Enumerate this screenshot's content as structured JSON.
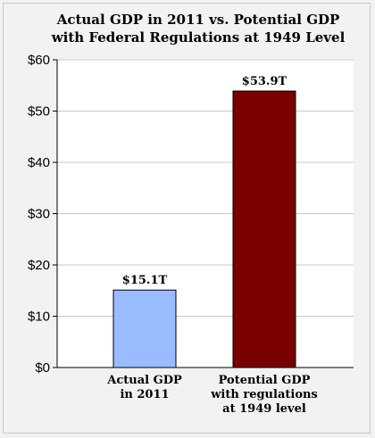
{
  "chart_data": {
    "type": "bar",
    "title_lines": [
      "Actual GDP in 2011 vs. Potential GDP",
      "with Federal Regulations at 1949 Level"
    ],
    "categories": [
      [
        "Actual GDP",
        "in 2011"
      ],
      [
        "Potential GDP",
        "with regulations",
        "at 1949 level"
      ]
    ],
    "values": [
      15.1,
      53.9
    ],
    "data_labels": [
      "$15.1T",
      "$53.9T"
    ],
    "bar_colors": [
      "#99bbff",
      "#7a0000"
    ],
    "y_ticks": [
      0,
      10,
      20,
      30,
      40,
      50,
      60
    ],
    "y_tick_labels": [
      "$0",
      "$10",
      "$20",
      "$30",
      "$40",
      "$50",
      "$60"
    ],
    "ylim": [
      0,
      60
    ],
    "grid": true,
    "legend": "none"
  }
}
